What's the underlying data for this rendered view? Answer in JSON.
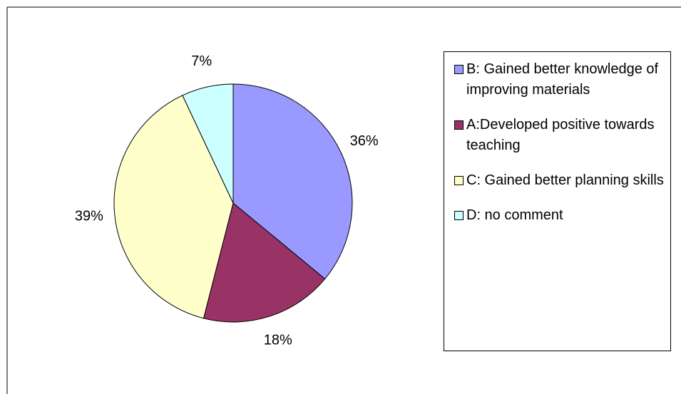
{
  "chart_data": {
    "type": "pie",
    "categories": [
      "B: Gained better knowledge of improving materials",
      "A:Developed positive towards teaching",
      "C: Gained better planning skills",
      "D: no comment"
    ],
    "values": [
      36,
      18,
      39,
      7
    ],
    "value_labels": [
      "36%",
      "18%",
      "39%",
      "7%"
    ],
    "colors": [
      "#9999ff",
      "#993366",
      "#ffffcc",
      "#ccffff"
    ],
    "legend": "right"
  }
}
